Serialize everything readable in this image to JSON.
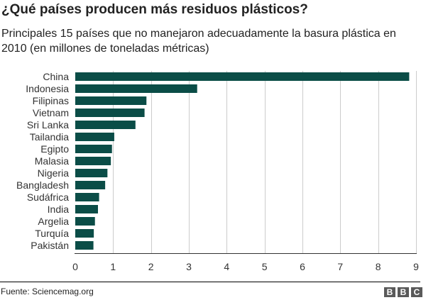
{
  "title": "¿Qué países producen más residuos plásticos?",
  "subtitle": "Principales 15 países que no manejaron adecuadamente la basura plástica en 2010 (en millones de toneladas métricas)",
  "source": "Fuente: Sciencemag.org",
  "logo": [
    "B",
    "B",
    "C"
  ],
  "colors": {
    "bar": "#0b4d47",
    "grid": "#cccccc",
    "axis": "#333333"
  },
  "chart_data": {
    "type": "bar",
    "orientation": "horizontal",
    "title": "¿Qué países producen más residuos plásticos?",
    "subtitle": "Principales 15 países que no manejaron adecuadamente la basura plástica en 2010 (en millones de toneladas métricas)",
    "xlabel": "",
    "ylabel": "",
    "xlim": [
      0,
      9
    ],
    "xticks": [
      0,
      1,
      2,
      3,
      4,
      5,
      6,
      7,
      8,
      9
    ],
    "grid": true,
    "categories": [
      "China",
      "Indonesia",
      "Filipinas",
      "Vietnam",
      "Sri Lanka",
      "Tailandia",
      "Egipto",
      "Malasia",
      "Nigeria",
      "Bangladesh",
      "Sudáfrica",
      "India",
      "Argelia",
      "Turquía",
      "Pakistán"
    ],
    "values": [
      8.82,
      3.22,
      1.88,
      1.83,
      1.59,
      1.03,
      0.97,
      0.94,
      0.85,
      0.79,
      0.63,
      0.6,
      0.52,
      0.49,
      0.48
    ]
  }
}
